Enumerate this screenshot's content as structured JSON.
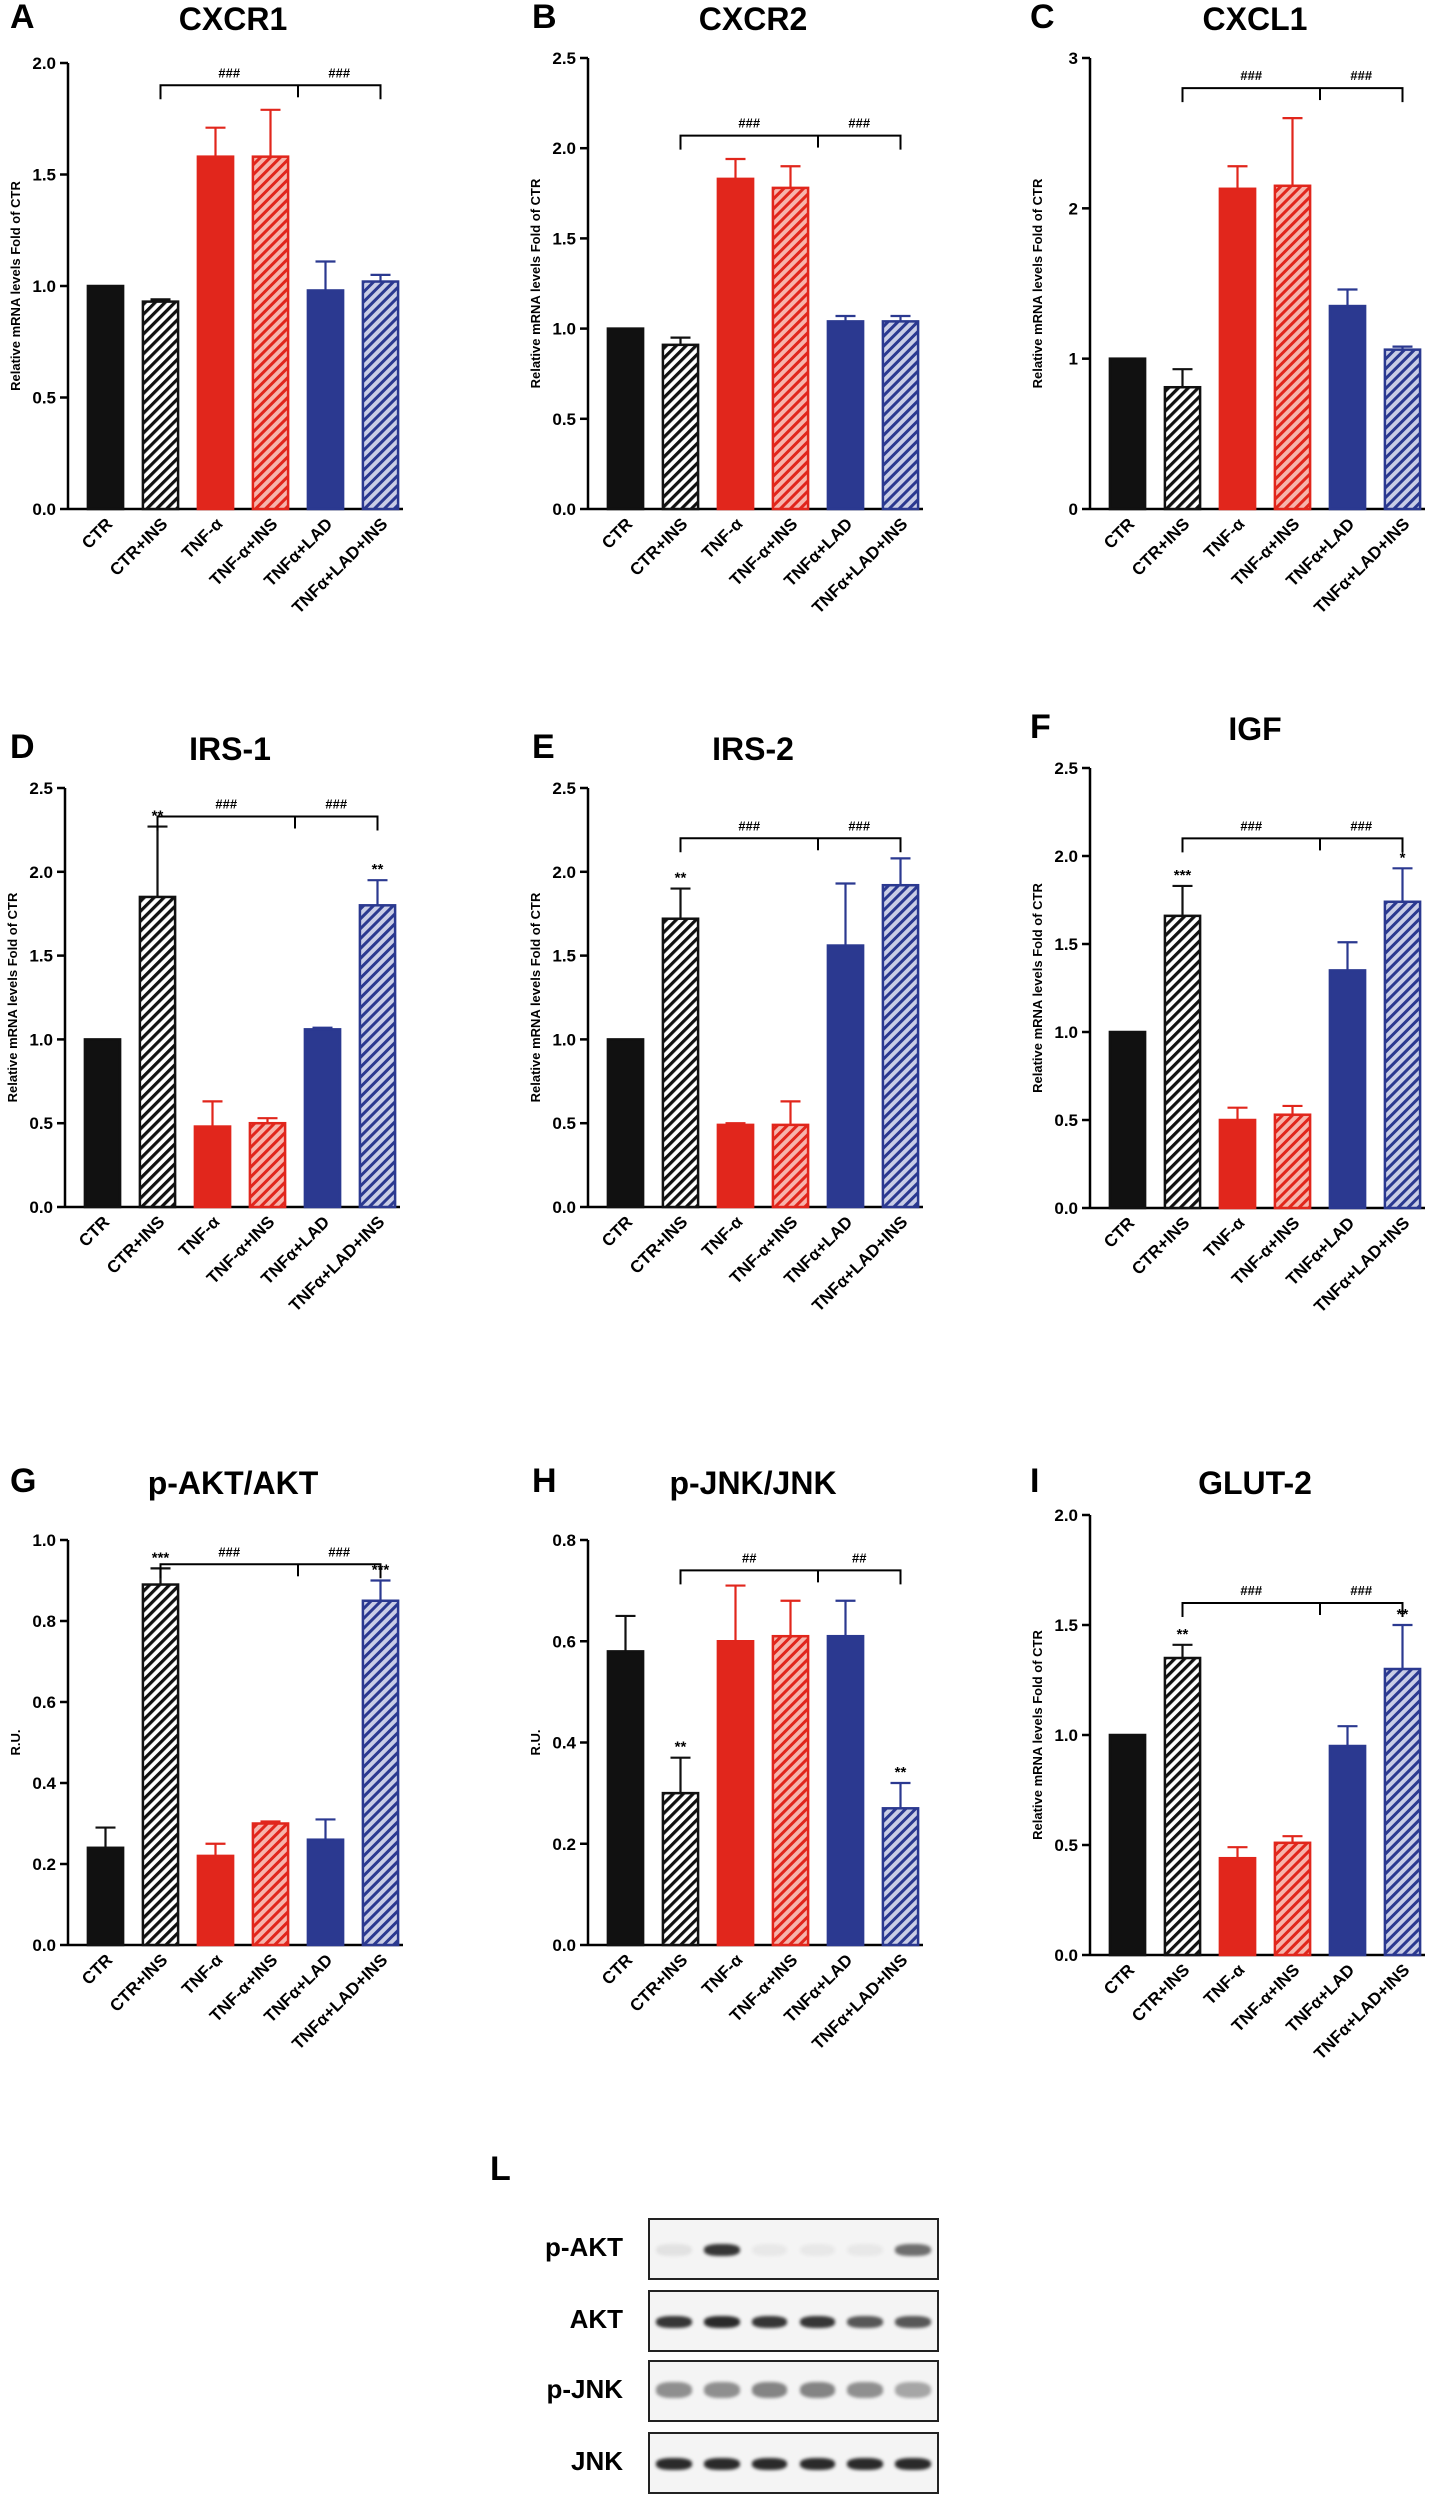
{
  "figure": {
    "colors": {
      "black": "#111111",
      "red": "#e1261c",
      "blue": "#2b3990",
      "hatch_black_bg": "#ffffff",
      "hatch_red_bg": "#f6b4ac",
      "hatch_blue_bg": "#b9bfdf"
    },
    "bar_styles": [
      "solid-black",
      "hatch-black",
      "solid-red",
      "hatch-red",
      "solid-blue",
      "hatch-blue"
    ]
  },
  "chart_data": [
    {
      "letter": "A",
      "type": "bar",
      "title": "CXCR1",
      "ylabel": "Relative mRNA levels Fold of CTR",
      "ylim": [
        0,
        2.0
      ],
      "yticks": [
        "0.0",
        "0.5",
        "1.0",
        "1.5",
        "2.0"
      ],
      "ytick_values": [
        0,
        0.5,
        1.0,
        1.5,
        2.0
      ],
      "categories": [
        "CTR",
        "CTR+INS",
        "TNF-α",
        "TNF-α+INS",
        "TNFα+LAD",
        "TNFα+LAD+INS"
      ],
      "values": [
        1.0,
        0.93,
        1.58,
        1.58,
        0.98,
        1.02
      ],
      "errors": [
        0,
        0.01,
        0.13,
        0.21,
        0.13,
        0.03
      ],
      "sig": [
        "",
        "",
        "",
        "",
        "",
        ""
      ],
      "bracket": {
        "label_left": "###",
        "label_right": "###",
        "y": 1.9,
        "from": 1,
        "mid": 3,
        "to": 5
      }
    },
    {
      "letter": "B",
      "type": "bar",
      "title": "CXCR2",
      "ylabel": "Relative mRNA levels Fold of CTR",
      "ylim": [
        0,
        2.5
      ],
      "yticks": [
        "0.0",
        "0.5",
        "1.0",
        "1.5",
        "2.0",
        "2.5"
      ],
      "ytick_values": [
        0,
        0.5,
        1.0,
        1.5,
        2.0,
        2.5
      ],
      "categories": [
        "CTR",
        "CTR+INS",
        "TNF-α",
        "TNF-α+INS",
        "TNFα+LAD",
        "TNFα+LAD+INS"
      ],
      "values": [
        1.0,
        0.91,
        1.83,
        1.78,
        1.04,
        1.04
      ],
      "errors": [
        0,
        0.04,
        0.11,
        0.12,
        0.03,
        0.03
      ],
      "sig": [
        "",
        "",
        "",
        "",
        "",
        ""
      ],
      "bracket": {
        "label_left": "###",
        "label_right": "###",
        "y": 2.07,
        "from": 1,
        "mid": 3,
        "to": 5
      }
    },
    {
      "letter": "C",
      "type": "bar",
      "title": "CXCL1",
      "ylabel": "Relative mRNA levels Fold of CTR",
      "ylim": [
        0,
        3
      ],
      "yticks": [
        "0",
        "1",
        "2",
        "3"
      ],
      "ytick_values": [
        0,
        1,
        2,
        3
      ],
      "categories": [
        "CTR",
        "CTR+INS",
        "TNF-α",
        "TNF-α+INS",
        "TNFα+LAD",
        "TNFα+LAD+INS"
      ],
      "values": [
        1.0,
        0.81,
        2.13,
        2.15,
        1.35,
        1.06
      ],
      "errors": [
        0,
        0.12,
        0.15,
        0.45,
        0.11,
        0.02
      ],
      "sig": [
        "",
        "",
        "",
        "",
        "",
        ""
      ],
      "bracket": {
        "label_left": "###",
        "label_right": "###",
        "y": 2.8,
        "from": 1,
        "mid": 3,
        "to": 5
      }
    },
    {
      "letter": "D",
      "type": "bar",
      "title": "IRS-1",
      "ylabel": "Relative mRNA levels Fold of CTR",
      "ylim": [
        0,
        2.5
      ],
      "yticks": [
        "0.0",
        "0.5",
        "1.0",
        "1.5",
        "2.0",
        "2.5"
      ],
      "ytick_values": [
        0,
        0.5,
        1.0,
        1.5,
        2.0,
        2.5
      ],
      "categories": [
        "CTR",
        "CTR+INS",
        "TNF-α",
        "TNF-α+INS",
        "TNFα+LAD",
        "TNFα+LAD+INS"
      ],
      "values": [
        1.0,
        1.85,
        0.48,
        0.5,
        1.06,
        1.8
      ],
      "errors": [
        0,
        0.42,
        0.15,
        0.03,
        0.01,
        0.15
      ],
      "sig": [
        "",
        "**",
        "",
        "",
        "",
        "**"
      ],
      "bracket": {
        "label_left": "###",
        "label_right": "###",
        "y": 2.33,
        "from": 1,
        "mid": 3,
        "to": 5
      }
    },
    {
      "letter": "E",
      "type": "bar",
      "title": "IRS-2",
      "ylabel": "Relative mRNA levels Fold of CTR",
      "ylim": [
        0,
        2.5
      ],
      "yticks": [
        "0.0",
        "0.5",
        "1.0",
        "1.5",
        "2.0",
        "2.5"
      ],
      "ytick_values": [
        0,
        0.5,
        1.0,
        1.5,
        2.0,
        2.5
      ],
      "categories": [
        "CTR",
        "CTR+INS",
        "TNF-α",
        "TNF-α+INS",
        "TNFα+LAD",
        "TNFα+LAD+INS"
      ],
      "values": [
        1.0,
        1.72,
        0.49,
        0.49,
        1.56,
        1.92
      ],
      "errors": [
        0,
        0.18,
        0.01,
        0.14,
        0.37,
        0.16
      ],
      "sig": [
        "",
        "**",
        "",
        "",
        "",
        ""
      ],
      "bracket": {
        "label_left": "###",
        "label_right": "###",
        "y": 2.2,
        "from": 1,
        "mid": 3,
        "to": 5
      }
    },
    {
      "letter": "F",
      "type": "bar",
      "title": "IGF",
      "ylabel": "Relative mRNA levels Fold of CTR",
      "ylim": [
        0,
        2.5
      ],
      "yticks": [
        "0.0",
        "0.5",
        "1.0",
        "1.5",
        "2.0",
        "2.5"
      ],
      "ytick_values": [
        0,
        0.5,
        1.0,
        1.5,
        2.0,
        2.5
      ],
      "categories": [
        "CTR",
        "CTR+INS",
        "TNF-α",
        "TNF-α+INS",
        "TNFα+LAD",
        "TNFα+LAD+INS"
      ],
      "values": [
        1.0,
        1.66,
        0.5,
        0.53,
        1.35,
        1.74
      ],
      "errors": [
        0,
        0.17,
        0.07,
        0.05,
        0.16,
        0.19
      ],
      "sig": [
        "",
        "***",
        "",
        "",
        "",
        "*"
      ],
      "bracket": {
        "label_left": "###",
        "label_right": "###",
        "y": 2.1,
        "from": 1,
        "mid": 3,
        "to": 5
      }
    },
    {
      "letter": "G",
      "type": "bar",
      "title": "p-AKT/AKT",
      "ylabel": "R.U.",
      "ylim": [
        0,
        1.0
      ],
      "yticks": [
        "0.0",
        "0.2",
        "0.4",
        "0.6",
        "0.8",
        "1.0"
      ],
      "ytick_values": [
        0,
        0.2,
        0.4,
        0.6,
        0.8,
        1.0
      ],
      "categories": [
        "CTR",
        "CTR+INS",
        "TNF-α",
        "TNF-α+INS",
        "TNFα+LAD",
        "TNFα+LAD+INS"
      ],
      "values": [
        0.24,
        0.89,
        0.22,
        0.3,
        0.26,
        0.85
      ],
      "errors": [
        0.05,
        0.04,
        0.03,
        0.005,
        0.05,
        0.05
      ],
      "sig": [
        "",
        "***",
        "",
        "",
        "",
        "***"
      ],
      "bracket": {
        "label_left": "###",
        "label_right": "###",
        "y": 0.94,
        "from": 1,
        "mid": 3,
        "to": 5
      }
    },
    {
      "letter": "H",
      "type": "bar",
      "title": "p-JNK/JNK",
      "ylabel": "R.U.",
      "ylim": [
        0,
        0.8
      ],
      "yticks": [
        "0.0",
        "0.2",
        "0.4",
        "0.6",
        "0.8"
      ],
      "ytick_values": [
        0,
        0.2,
        0.4,
        0.6,
        0.8
      ],
      "categories": [
        "CTR",
        "CTR+INS",
        "TNF-α",
        "TNF-α+INS",
        "TNFα+LAD",
        "TNFα+LAD+INS"
      ],
      "values": [
        0.58,
        0.3,
        0.6,
        0.61,
        0.61,
        0.27
      ],
      "errors": [
        0.07,
        0.07,
        0.11,
        0.07,
        0.07,
        0.05
      ],
      "sig": [
        "",
        "**",
        "",
        "",
        "",
        "**"
      ],
      "bracket": {
        "label_left": "##",
        "label_right": "##",
        "y": 0.74,
        "from": 1,
        "mid": 3,
        "to": 5
      }
    },
    {
      "letter": "I",
      "type": "bar",
      "title": "GLUT-2",
      "ylabel": "Relative mRNA levels Fold of CTR",
      "ylim": [
        0,
        2.0
      ],
      "yticks": [
        "0.0",
        "0.5",
        "1.0",
        "1.5",
        "2.0"
      ],
      "ytick_values": [
        0,
        0.5,
        1.0,
        1.5,
        2.0
      ],
      "categories": [
        "CTR",
        "CTR+INS",
        "TNF-α",
        "TNF-α+INS",
        "TNFα+LAD",
        "TNFα+LAD+INS"
      ],
      "values": [
        1.0,
        1.35,
        0.44,
        0.51,
        0.95,
        1.3
      ],
      "errors": [
        0,
        0.06,
        0.05,
        0.03,
        0.09,
        0.2
      ],
      "sig": [
        "",
        "**",
        "",
        "",
        "",
        "**"
      ],
      "bracket": {
        "label_left": "###",
        "label_right": "###",
        "y": 1.6,
        "from": 1,
        "mid": 3,
        "to": 5
      }
    }
  ],
  "western_blot": {
    "letter": "L",
    "rows": [
      {
        "label": "p-AKT",
        "intensities": [
          0.08,
          0.85,
          0.05,
          0.05,
          0.05,
          0.6
        ]
      },
      {
        "label": "AKT",
        "intensities": [
          0.85,
          0.9,
          0.85,
          0.85,
          0.7,
          0.7
        ]
      },
      {
        "label": "p-JNK",
        "intensities": [
          0.45,
          0.45,
          0.5,
          0.5,
          0.45,
          0.35
        ]
      },
      {
        "label": "JNK",
        "intensities": [
          0.9,
          0.9,
          0.9,
          0.9,
          0.9,
          0.9
        ]
      }
    ]
  }
}
